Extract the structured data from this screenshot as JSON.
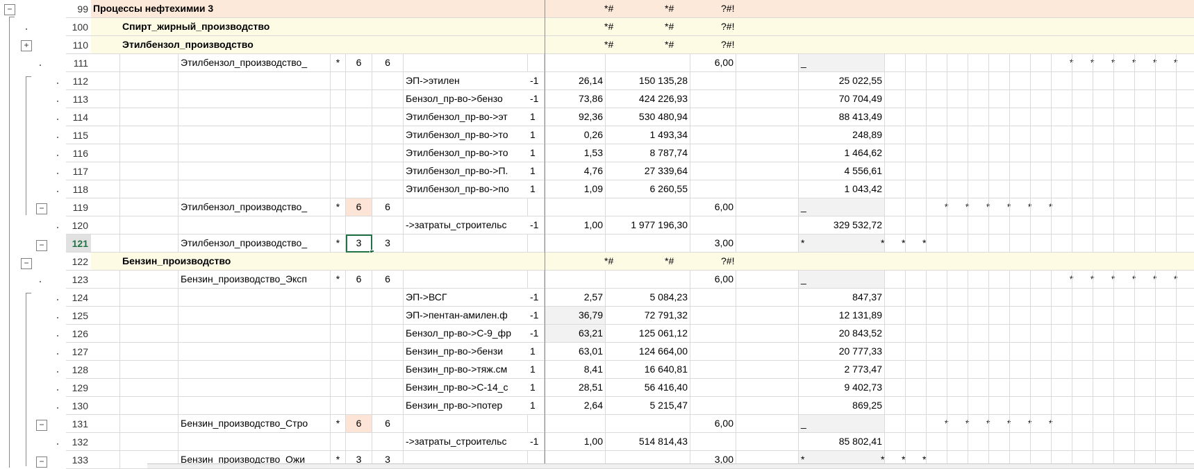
{
  "colors": {
    "group_top": "#fde9d9",
    "group_sub": "#fefbe5",
    "orange_cell": "#fce4d6",
    "grey_cell": "#f2f2f2",
    "selection": "#217346"
  },
  "rows": [
    {
      "n": "99",
      "level": "top",
      "name": "Процессы нефтехимии 3",
      "g": "*#",
      "h": "*#",
      "i": "?#!"
    },
    {
      "n": "100",
      "level": "sub",
      "name": "Спирт_жирный_производство",
      "g": "*#",
      "h": "*#",
      "i": "?#!"
    },
    {
      "n": "110",
      "level": "sub",
      "name": "Этилбензол_производство",
      "g": "*#",
      "h": "*#",
      "i": "?#!"
    },
    {
      "n": "111",
      "level": "proc",
      "name": "Этилбензол_производство_",
      "star": "*",
      "v1": "6",
      "v2": "6",
      "h": "6,00",
      "k": "_",
      "stars": "R6"
    },
    {
      "n": "112",
      "level": "flow",
      "flow": "ЭП->этилен",
      "sign": "-1",
      "f": "26,14",
      "g": "150 135,28",
      "k": "25 022,55"
    },
    {
      "n": "113",
      "level": "flow",
      "flow": "Бензол_пр-во->бензо",
      "sign": "-1",
      "f": "73,86",
      "g": "424 226,93",
      "k": "70 704,49"
    },
    {
      "n": "114",
      "level": "flow",
      "flow": "Этилбензол_пр-во->эт",
      "sign": "1",
      "f": "92,36",
      "g": "530 480,94",
      "k": "88 413,49"
    },
    {
      "n": "115",
      "level": "flow",
      "flow": "Этилбензол_пр-во->то",
      "sign": "1",
      "f": "0,26",
      "g": "1 493,34",
      "k": "248,89"
    },
    {
      "n": "116",
      "level": "flow",
      "flow": "Этилбензол_пр-во->то",
      "sign": "1",
      "f": "1,53",
      "g": "8 787,74",
      "k": "1 464,62"
    },
    {
      "n": "117",
      "level": "flow",
      "flow": "Этилбензол_пр-во->П.",
      "sign": "1",
      "f": "4,76",
      "g": "27 339,64",
      "k": "4 556,61"
    },
    {
      "n": "118",
      "level": "flow",
      "flow": "Этилбензол_пр-во->по",
      "sign": "1",
      "f": "1,09",
      "g": "6 260,55",
      "k": "1 043,42"
    },
    {
      "n": "119",
      "level": "proc",
      "name": "Этилбензол_производство_",
      "star": "*",
      "v1": "6",
      "v2": "6",
      "h": "6,00",
      "k": "_",
      "stars": "M6",
      "v1orange": true
    },
    {
      "n": "120",
      "level": "flow",
      "flow": "->затраты_строительс",
      "sign": "-1",
      "f": "1,00",
      "g": "1 977 196,30",
      "k": "329 532,72"
    },
    {
      "n": "121",
      "level": "proc",
      "name": "Этилбензол_производство_",
      "star": "*",
      "v1": "3",
      "v2": "3",
      "h": "3,00",
      "k": "*",
      "stars": "L3",
      "selected": true
    },
    {
      "n": "122",
      "level": "sub",
      "name": "Бензин_производство",
      "g": "*#",
      "h": "*#",
      "i": "?#!"
    },
    {
      "n": "123",
      "level": "proc",
      "name": "Бензин_производство_Эксп",
      "star": "*",
      "v1": "6",
      "v2": "6",
      "h": "6,00",
      "k": "_",
      "stars": "R6"
    },
    {
      "n": "124",
      "level": "flow",
      "flow": "ЭП->ВСГ",
      "sign": "-1",
      "f": "2,57",
      "g": "5 084,23",
      "k": "847,37"
    },
    {
      "n": "125",
      "level": "flow",
      "flow": "ЭП->пентан-амилен.ф",
      "sign": "-1",
      "f": "36,79",
      "g": "72 791,32",
      "k": "12 131,89",
      "fgrey": true
    },
    {
      "n": "126",
      "level": "flow",
      "flow": "Бензол_пр-во->С-9_фр",
      "sign": "-1",
      "f": "63,21",
      "g": "125 061,12",
      "k": "20 843,52",
      "fgrey": true
    },
    {
      "n": "127",
      "level": "flow",
      "flow": "Бензин_пр-во->бензи",
      "sign": "1",
      "f": "63,01",
      "g": "124 664,00",
      "k": "20 777,33"
    },
    {
      "n": "128",
      "level": "flow",
      "flow": "Бензин_пр-во->тяж.см",
      "sign": "1",
      "f": "8,41",
      "g": "16 640,81",
      "k": "2 773,47"
    },
    {
      "n": "129",
      "level": "flow",
      "flow": "Бензин_пр-во->С-14_с",
      "sign": "1",
      "f": "28,51",
      "g": "56 416,40",
      "k": "9 402,73"
    },
    {
      "n": "130",
      "level": "flow",
      "flow": "Бензин_пр-во->потер",
      "sign": "1",
      "f": "2,64",
      "g": "5 215,47",
      "k": "869,25"
    },
    {
      "n": "131",
      "level": "proc",
      "name": "Бензин_производство_Стро",
      "star": "*",
      "v1": "6",
      "v2": "6",
      "h": "6,00",
      "k": "_",
      "stars": "M6",
      "v1orange": true
    },
    {
      "n": "132",
      "level": "flow",
      "flow": "->затраты_строительс",
      "sign": "-1",
      "f": "1,00",
      "g": "514 814,43",
      "k": "85 802,41"
    },
    {
      "n": "133",
      "level": "proc",
      "name": "Бензин_производство_Ожи",
      "star": "*",
      "v1": "3",
      "v2": "3",
      "h": "3,00",
      "k": "*",
      "stars": "L3"
    }
  ],
  "star_char": "*"
}
